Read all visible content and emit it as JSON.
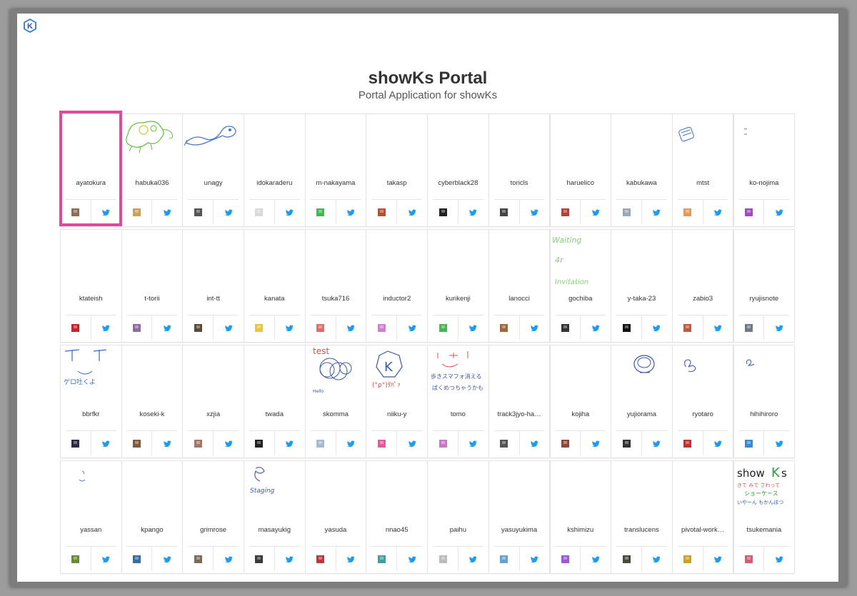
{
  "app": {
    "title": "showKs Portal",
    "subtitle": "Portal Application for showKs",
    "accent": "#e1489a",
    "twitter_color": "#1d9bf0"
  },
  "selected_user": "ayatokura",
  "users": [
    {
      "name": "ayatokura",
      "avatar": "#8a6e5a",
      "drawing": "none"
    },
    {
      "name": "habuka036",
      "avatar": "#c8a060",
      "drawing": "creature-green"
    },
    {
      "name": "unagy",
      "avatar": "#555555",
      "drawing": "eel-blue"
    },
    {
      "name": "idokaraderu",
      "avatar": "#d9d9d9",
      "drawing": "none"
    },
    {
      "name": "m-nakayama",
      "avatar": "#3fb950",
      "drawing": "none"
    },
    {
      "name": "takasp",
      "avatar": "#c44a2c",
      "drawing": "none"
    },
    {
      "name": "cyberblack28",
      "avatar": "#222222",
      "drawing": "none"
    },
    {
      "name": "toricls",
      "avatar": "#444444",
      "drawing": "none"
    },
    {
      "name": "haruelico",
      "avatar": "#b0413e",
      "drawing": "none"
    },
    {
      "name": "kabukawa",
      "avatar": "#9aa7b5",
      "drawing": "none"
    },
    {
      "name": "mtst",
      "avatar": "#e59a5a",
      "drawing": "box-blue"
    },
    {
      "name": "ko-nojima",
      "avatar": "#a04bc0",
      "drawing": "dash-small"
    },
    {
      "name": "ktateish",
      "avatar": "#c0262d",
      "drawing": "none"
    },
    {
      "name": "t-torii",
      "avatar": "#8a6f9e",
      "drawing": "none"
    },
    {
      "name": "int-tt",
      "avatar": "#5a4a3a",
      "drawing": "none"
    },
    {
      "name": "kanata",
      "avatar": "#e8c73a",
      "drawing": "none"
    },
    {
      "name": "tsuka716",
      "avatar": "#e56b6b",
      "drawing": "none"
    },
    {
      "name": "inductor2",
      "avatar": "#d67ad6",
      "drawing": "none"
    },
    {
      "name": "kurikenji",
      "avatar": "#3fb950",
      "drawing": "none"
    },
    {
      "name": "lanocci",
      "avatar": "#9a6a3a",
      "drawing": "none"
    },
    {
      "name": "gochiba",
      "avatar": "#333333",
      "drawing": "text-green"
    },
    {
      "name": "y-taka-23",
      "avatar": "#111111",
      "drawing": "none"
    },
    {
      "name": "zabio3",
      "avatar": "#c25a3a",
      "drawing": "none"
    },
    {
      "name": "ryujisnote",
      "avatar": "#6e7a88",
      "drawing": "none"
    },
    {
      "name": "bbrfkr",
      "avatar": "#2a2a40",
      "drawing": "face-blue"
    },
    {
      "name": "koseki-k",
      "avatar": "#7a5a40",
      "drawing": "none"
    },
    {
      "name": "xzjia",
      "avatar": "#a0786a",
      "drawing": "none"
    },
    {
      "name": "twada",
      "avatar": "#222222",
      "drawing": "none"
    },
    {
      "name": "skomma",
      "avatar": "#a8b8d0",
      "drawing": "test-scribble"
    },
    {
      "name": "niiku-y",
      "avatar": "#e25aa0",
      "drawing": "k-hexagon"
    },
    {
      "name": "tomo",
      "avatar": "#c878c8",
      "drawing": "smile-text"
    },
    {
      "name": "track3jyo-ha…",
      "avatar": "#555555",
      "drawing": "none"
    },
    {
      "name": "kojiha",
      "avatar": "#8a4a3a",
      "drawing": "none"
    },
    {
      "name": "yujiorama",
      "avatar": "#333333",
      "drawing": "swirl-blue"
    },
    {
      "name": "ryotaro",
      "avatar": "#c03030",
      "drawing": "loop-small"
    },
    {
      "name": "hihihiroro",
      "avatar": "#3a8ad0",
      "drawing": "loop-tiny"
    },
    {
      "name": "yassan",
      "avatar": "#6a8a3a",
      "drawing": "squiggle"
    },
    {
      "name": "kpango",
      "avatar": "#3a6aa0",
      "drawing": "none"
    },
    {
      "name": "grimrose",
      "avatar": "#7a6a5a",
      "drawing": "none"
    },
    {
      "name": "masayukig",
      "avatar": "#3a3a3a",
      "drawing": "staging"
    },
    {
      "name": "yasuda",
      "avatar": "#c0343a",
      "drawing": "none"
    },
    {
      "name": "nnao45",
      "avatar": "#3aa0a0",
      "drawing": "none"
    },
    {
      "name": "paihu",
      "avatar": "#bbbbbb",
      "drawing": "none"
    },
    {
      "name": "yasuyukima",
      "avatar": "#6aa0d0",
      "drawing": "none"
    },
    {
      "name": "kshimizu",
      "avatar": "#9a5ad0",
      "drawing": "none"
    },
    {
      "name": "translucens",
      "avatar": "#4a4a3a",
      "drawing": "none"
    },
    {
      "name": "pivotal-work…",
      "avatar": "#d0a020",
      "drawing": "none"
    },
    {
      "name": "tsukemania",
      "avatar": "#d85a7a",
      "drawing": "showks"
    }
  ]
}
